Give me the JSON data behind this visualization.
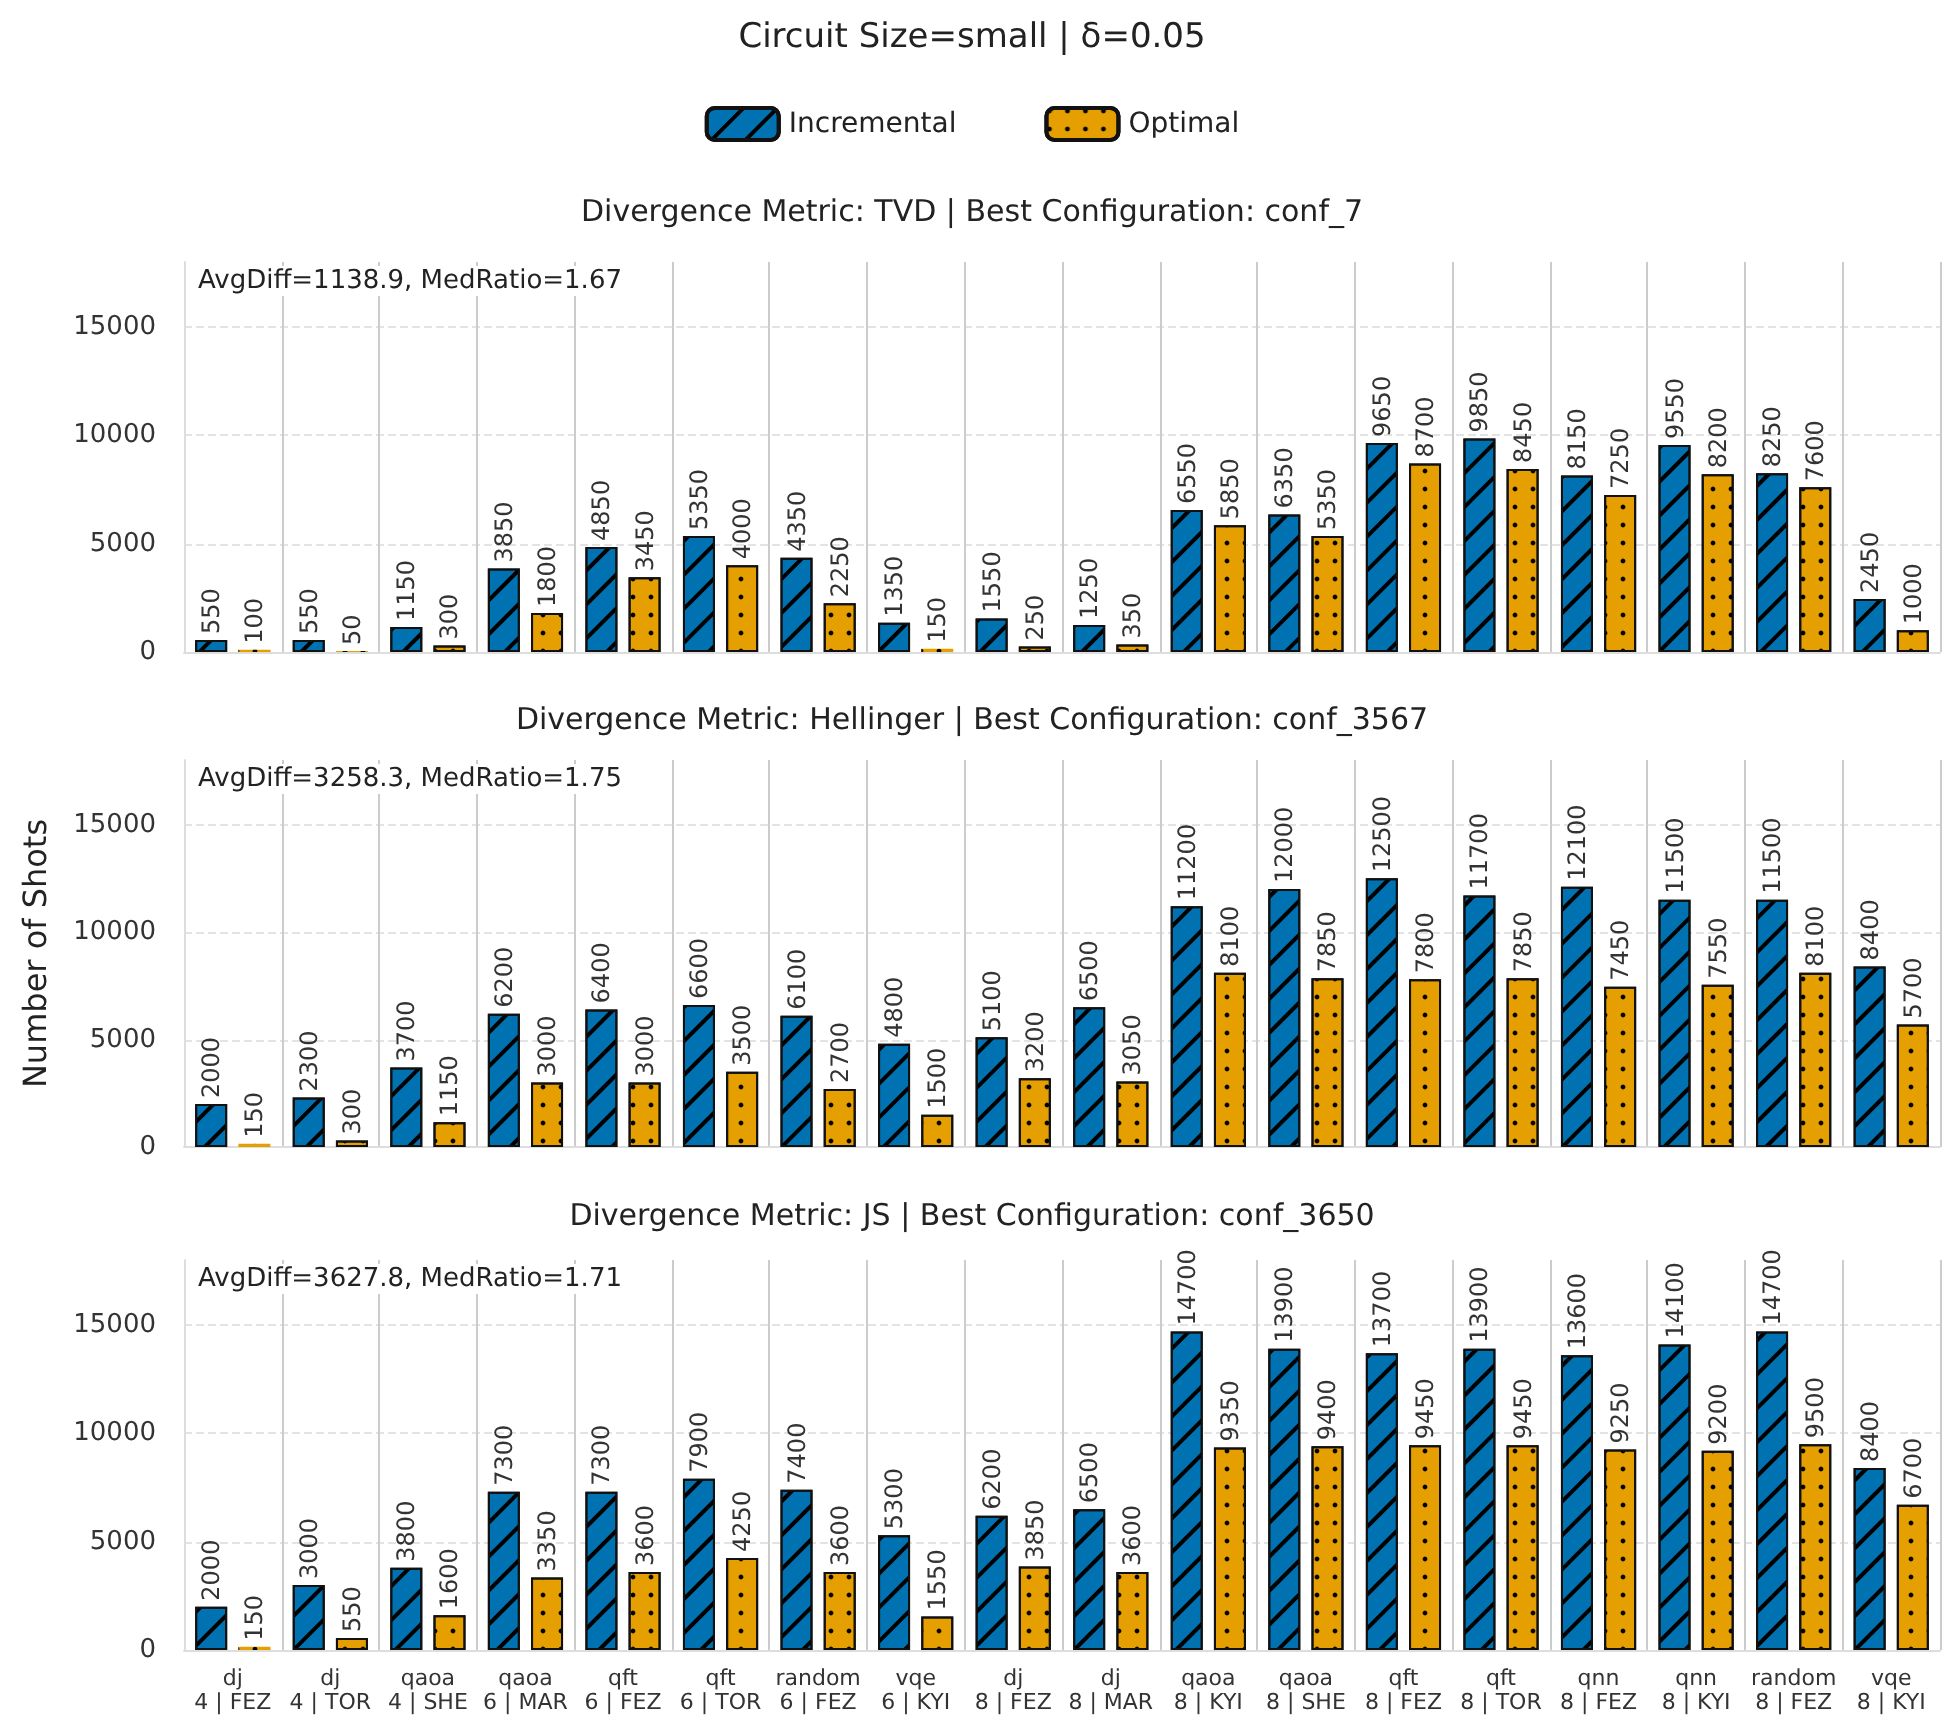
{
  "chart_data": [
    {
      "type": "bar",
      "title": "Circuit Size=small | δ=0.05",
      "subtitle": "Divergence Metric: TVD | Best Configuration: conf_7",
      "categories": [
        null,
        null,
        null,
        null,
        null,
        null,
        null,
        null,
        null,
        null,
        null,
        null,
        null,
        null,
        null,
        null,
        null,
        null
      ],
      "series": [
        {
          "name": "Incremental",
          "color": "#0072b2",
          "values": [
            550,
            550,
            1150,
            3850,
            4850,
            5350,
            4350,
            1350,
            1550,
            1250,
            6550,
            6350,
            9650,
            9850,
            8150,
            9550,
            8250,
            2450
          ]
        },
        {
          "name": "Optimal",
          "color": "#e69f00",
          "values": [
            100,
            50,
            300,
            1800,
            3450,
            4000,
            2250,
            150,
            250,
            350,
            5850,
            5350,
            8700,
            8450,
            7250,
            8200,
            7600,
            1000
          ]
        }
      ],
      "annotations": [
        "AvgDiff=1138.9, MedRatio=1.67"
      ],
      "ylim": [
        0,
        18000
      ],
      "yticks": [
        0,
        5000,
        10000,
        15000
      ],
      "grid": true,
      "legend": "top",
      "data_labels": true,
      "tick_labels": "y"
    },
    {
      "type": "bar",
      "title": "Divergence Metric: Hellinger | Best Configuration: conf_3567",
      "ylabel": "Number of Shots",
      "categories": [
        null,
        null,
        null,
        null,
        null,
        null,
        null,
        null,
        null,
        null,
        null,
        null,
        null,
        null,
        null,
        null,
        null,
        null
      ],
      "series": [
        {
          "color": "#0072b2",
          "values": [
            2000,
            2300,
            3700,
            6200,
            6400,
            6600,
            6100,
            4800,
            5100,
            6500,
            11200,
            12000,
            12500,
            11700,
            12100,
            11500,
            11500,
            8400
          ]
        },
        {
          "color": "#e69f00",
          "values": [
            150,
            300,
            1150,
            3000,
            3000,
            3500,
            2700,
            1500,
            3200,
            3050,
            8100,
            7850,
            7800,
            7850,
            7450,
            7550,
            8100,
            5700
          ]
        }
      ],
      "annotations": [
        "AvgDiff=3258.3, MedRatio=1.75"
      ],
      "ylim": [
        0,
        18000
      ],
      "yticks": [
        0,
        5000,
        10000,
        15000
      ],
      "grid": true,
      "data_labels": true,
      "tick_labels": "y"
    },
    {
      "type": "bar",
      "title": "Divergence Metric: JS | Best Configuration: conf_3650",
      "categories": [
        "dj\n4 | FEZ",
        "dj\n4 | TOR",
        "qaoa\n4 | SHE",
        "qaoa\n6 | MAR",
        "qft\n6 | FEZ",
        "qft\n6 | TOR",
        "random\n6 | FEZ",
        "vqe\n6 | KYI",
        "dj\n8 | FEZ",
        "dj\n8 | MAR",
        "qaoa\n8 | KYI",
        "qaoa\n8 | SHE",
        "qft\n8 | FEZ",
        "qft\n8 | TOR",
        "qnn\n8 | FEZ",
        "qnn\n8 | KYI",
        "random\n8 | FEZ",
        "vqe\n8 | KYI"
      ],
      "series": [
        {
          "color": "#0072b2",
          "values": [
            2000,
            3000,
            3800,
            7300,
            7300,
            7900,
            7400,
            5300,
            6200,
            6500,
            14700,
            13900,
            13700,
            13900,
            13600,
            14100,
            14700,
            8400
          ]
        },
        {
          "color": "#e69f00",
          "values": [
            150,
            550,
            1600,
            3350,
            3600,
            4250,
            3600,
            1550,
            3850,
            3600,
            9350,
            9400,
            9450,
            9450,
            9250,
            9200,
            9500,
            6700
          ]
        }
      ],
      "annotations": [
        "AvgDiff=3627.8, MedRatio=1.71"
      ],
      "ylim": [
        0,
        18000
      ],
      "yticks": [
        0,
        5000,
        10000,
        15000
      ],
      "grid": true,
      "data_labels": true
    }
  ]
}
